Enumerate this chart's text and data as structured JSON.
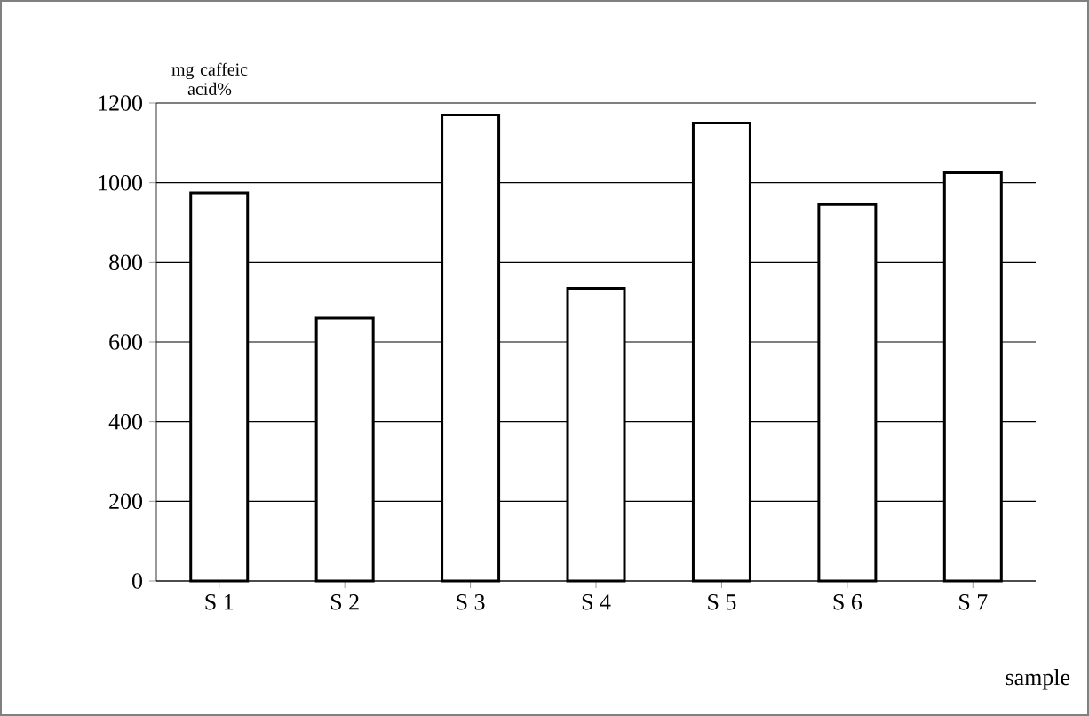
{
  "chart_data": {
    "type": "bar",
    "xlabel": "sample",
    "ylabel": "mg caffeic acid%",
    "categories": [
      "S 1",
      "S 2",
      "S 3",
      "S 4",
      "S 5",
      "S 6",
      "S 7"
    ],
    "values": [
      975,
      660,
      1170,
      735,
      1150,
      945,
      1025
    ],
    "color": "#ffffff",
    "ylim": [
      0,
      1200
    ],
    "yticks": [
      0,
      200,
      400,
      600,
      800,
      1000,
      1200
    ],
    "grid": "y"
  }
}
